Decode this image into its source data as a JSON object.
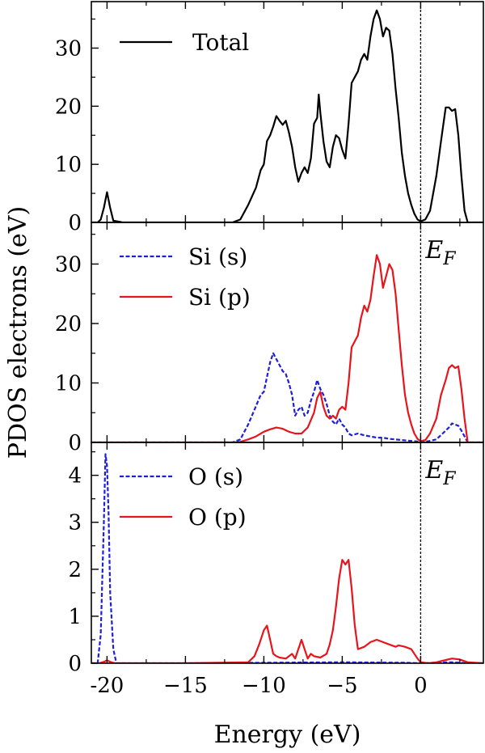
{
  "chart_data": {
    "type": "line",
    "xlabel": "Energy (eV)",
    "ylabel": "PDOS electrons (eV)",
    "xlim": [
      -21,
      4
    ],
    "xticks": [
      -20,
      -15,
      -10,
      -5,
      0
    ],
    "xtick_labels": [
      "-20",
      "−15",
      "−10",
      "−5",
      "0"
    ],
    "fermi_level": 0,
    "fermi_label": "E",
    "fermi_label_sub": "F",
    "grid": false,
    "panels": [
      {
        "id": "total",
        "ylim": [
          0,
          38
        ],
        "yticks": [
          0,
          10,
          20,
          30
        ],
        "legend_position": "top-left",
        "show_fermi_label": false,
        "series": [
          {
            "name": "Total",
            "color": "#000000",
            "dash": "solid",
            "x": [
              -21,
              -20.6,
              -20.4,
              -20.2,
              -20.0,
              -19.8,
              -19.6,
              -19,
              -15,
              -12,
              -11.5,
              -11,
              -10.5,
              -10.2,
              -10.0,
              -9.8,
              -9.6,
              -9.4,
              -9.2,
              -9.0,
              -8.8,
              -8.6,
              -8.4,
              -8.2,
              -8.0,
              -7.8,
              -7.6,
              -7.4,
              -7.2,
              -7.0,
              -6.8,
              -6.6,
              -6.5,
              -6.4,
              -6.2,
              -6.0,
              -5.8,
              -5.6,
              -5.4,
              -5.2,
              -5.0,
              -4.8,
              -4.6,
              -4.4,
              -4.2,
              -4.0,
              -3.8,
              -3.6,
              -3.4,
              -3.2,
              -3.0,
              -2.8,
              -2.6,
              -2.4,
              -2.2,
              -2.0,
              -1.8,
              -1.6,
              -1.4,
              -1.2,
              -1.0,
              -0.8,
              -0.6,
              -0.4,
              -0.2,
              0.0,
              0.3,
              0.6,
              1.0,
              1.3,
              1.6,
              1.8,
              2.0,
              2.2,
              2.4,
              2.6,
              2.8,
              3.0,
              3.5,
              4.0
            ],
            "y": [
              0,
              0,
              0.5,
              2.5,
              5.2,
              2.5,
              0.3,
              0,
              0,
              0,
              0.5,
              3,
              6,
              9,
              10,
              14,
              15,
              16.5,
              18.3,
              17.5,
              16.8,
              17.5,
              15.5,
              13,
              9.5,
              7,
              8.5,
              9.5,
              8.5,
              11,
              17,
              18,
              22,
              19,
              14,
              10.5,
              9.5,
              13,
              15,
              14.5,
              12.5,
              11,
              17,
              24,
              25,
              26,
              28,
              29,
              28,
              32,
              35,
              36.5,
              35,
              32,
              33.5,
              33,
              29,
              23,
              18,
              12,
              8,
              5,
              3,
              1.5,
              0.5,
              0.2,
              0.5,
              2,
              8,
              14,
              19.8,
              19.8,
              19.2,
              19.5,
              15,
              8,
              2,
              0,
              0,
              0
            ]
          }
        ]
      },
      {
        "id": "si",
        "ylim": [
          0,
          37
        ],
        "yticks": [
          0,
          10,
          20,
          30
        ],
        "legend_position": "top-left",
        "show_fermi_label": true,
        "series": [
          {
            "name": "Si (s)",
            "color": "#1f1fd6",
            "dash": "dashed",
            "x": [
              -21,
              -12,
              -11.5,
              -11,
              -10.6,
              -10.2,
              -10.0,
              -9.8,
              -9.6,
              -9.4,
              -9.2,
              -9.0,
              -8.8,
              -8.6,
              -8.4,
              -8.2,
              -8.0,
              -7.8,
              -7.6,
              -7.4,
              -7.2,
              -7.0,
              -6.8,
              -6.6,
              -6.4,
              -6.2,
              -6.0,
              -5.8,
              -5.6,
              -5.4,
              -5.2,
              -5.0,
              -4.8,
              -4.6,
              -4.4,
              -4.0,
              -3.6,
              -3.2,
              -2.8,
              -2.4,
              -2.0,
              -1.6,
              -1.2,
              -0.8,
              -0.4,
              0,
              0.5,
              1.0,
              1.4,
              1.8,
              2.0,
              2.2,
              2.4,
              2.6,
              2.8,
              3.0,
              4.0
            ],
            "y": [
              0,
              0,
              0.5,
              3,
              5.5,
              8,
              8.5,
              11,
              13.5,
              15,
              14,
              13,
              12,
              11.5,
              10,
              8,
              4.5,
              5.5,
              6,
              4.5,
              5,
              7,
              8.5,
              10.5,
              9,
              8,
              6.5,
              4.5,
              3.5,
              3,
              4,
              3,
              2.5,
              1.5,
              1.2,
              1.5,
              1.2,
              1.0,
              0.8,
              0.8,
              0.6,
              0.5,
              0.4,
              0.3,
              0.2,
              0.1,
              0.2,
              0.5,
              1.5,
              2.5,
              3.2,
              3.0,
              2.8,
              2.0,
              1.0,
              0,
              0
            ]
          },
          {
            "name": "Si (p)",
            "color": "#e8141c",
            "dash": "solid",
            "x": [
              -21,
              -12,
              -11.5,
              -11,
              -10.5,
              -10.0,
              -9.6,
              -9.2,
              -8.8,
              -8.4,
              -8.0,
              -7.6,
              -7.2,
              -6.8,
              -6.6,
              -6.4,
              -6.2,
              -6.0,
              -5.8,
              -5.6,
              -5.4,
              -5.2,
              -5.0,
              -4.8,
              -4.6,
              -4.4,
              -4.2,
              -4.0,
              -3.8,
              -3.6,
              -3.4,
              -3.2,
              -3.0,
              -2.8,
              -2.6,
              -2.4,
              -2.2,
              -2.0,
              -1.8,
              -1.6,
              -1.4,
              -1.2,
              -1.0,
              -0.8,
              -0.6,
              -0.4,
              -0.2,
              0,
              0.3,
              0.6,
              1.0,
              1.3,
              1.6,
              1.8,
              2.0,
              2.2,
              2.4,
              2.6,
              2.8,
              3.0,
              4.0
            ],
            "y": [
              0,
              0,
              0.1,
              0.5,
              1,
              1.8,
              2.2,
              2.5,
              2.3,
              1.8,
              1.5,
              1.5,
              2.5,
              5,
              7.5,
              8.5,
              6,
              4.5,
              4,
              4.5,
              4,
              5.5,
              6,
              5.5,
              10,
              16,
              17,
              18,
              21,
              23,
              22,
              24,
              28,
              31.5,
              30,
              26,
              28,
              30,
              29,
              25,
              19,
              13,
              8,
              5,
              3,
              1.5,
              0.6,
              0.2,
              0.4,
              1.5,
              4,
              8,
              10.5,
              12.5,
              13,
              12.5,
              12.8,
              9,
              4,
              0,
              0
            ]
          }
        ]
      },
      {
        "id": "o",
        "ylim": [
          0,
          4.7
        ],
        "yticks": [
          0,
          1,
          2,
          3,
          4
        ],
        "legend_position": "top-left",
        "show_fermi_label": true,
        "series": [
          {
            "name": "O (s)",
            "color": "#1f1fd6",
            "dash": "dashed",
            "x": [
              -21,
              -20.6,
              -20.4,
              -20.2,
              -20.1,
              -20.0,
              -19.9,
              -19.8,
              -19.6,
              -19.4,
              -19,
              -15,
              -10,
              -5,
              -1,
              0,
              1,
              2,
              2.5,
              3,
              4
            ],
            "y": [
              0,
              0,
              0.6,
              3.0,
              4.45,
              4.2,
              3.2,
              1.5,
              0.3,
              0,
              0,
              0,
              0.01,
              0.02,
              0.01,
              0,
              0.01,
              0.02,
              0.01,
              0,
              0
            ]
          },
          {
            "name": "O (p)",
            "color": "#e8141c",
            "dash": "solid",
            "x": [
              -21,
              -20.5,
              -20.2,
              -20.0,
              -19.8,
              -19.5,
              -19,
              -15,
              -11,
              -10.6,
              -10.3,
              -10.0,
              -9.8,
              -9.6,
              -9.4,
              -9.2,
              -9.0,
              -8.6,
              -8.2,
              -8.0,
              -7.8,
              -7.6,
              -7.4,
              -7.2,
              -7.0,
              -6.8,
              -6.4,
              -6.0,
              -5.8,
              -5.6,
              -5.4,
              -5.2,
              -5.0,
              -4.8,
              -4.6,
              -4.4,
              -4.2,
              -4.0,
              -3.6,
              -3.2,
              -2.8,
              -2.4,
              -2.0,
              -1.6,
              -1.4,
              -1.0,
              -0.6,
              -0.2,
              0,
              0.5,
              1.0,
              1.5,
              2.0,
              2.5,
              3.0,
              4.0
            ],
            "y": [
              0,
              0,
              0.03,
              0.06,
              0.03,
              0,
              0,
              0,
              0.02,
              0.15,
              0.4,
              0.7,
              0.8,
              0.5,
              0.2,
              0.15,
              0.12,
              0.1,
              0.2,
              0.1,
              0.3,
              0.5,
              0.3,
              0.1,
              0.2,
              0.15,
              0.12,
              0.2,
              0.4,
              0.7,
              1.2,
              1.8,
              2.2,
              2.1,
              2.2,
              1.6,
              0.8,
              0.3,
              0.35,
              0.45,
              0.5,
              0.45,
              0.4,
              0.35,
              0.38,
              0.35,
              0.3,
              0.1,
              0.02,
              0.0,
              0.02,
              0.06,
              0.1,
              0.08,
              0.02,
              0
            ]
          }
        ]
      }
    ]
  }
}
